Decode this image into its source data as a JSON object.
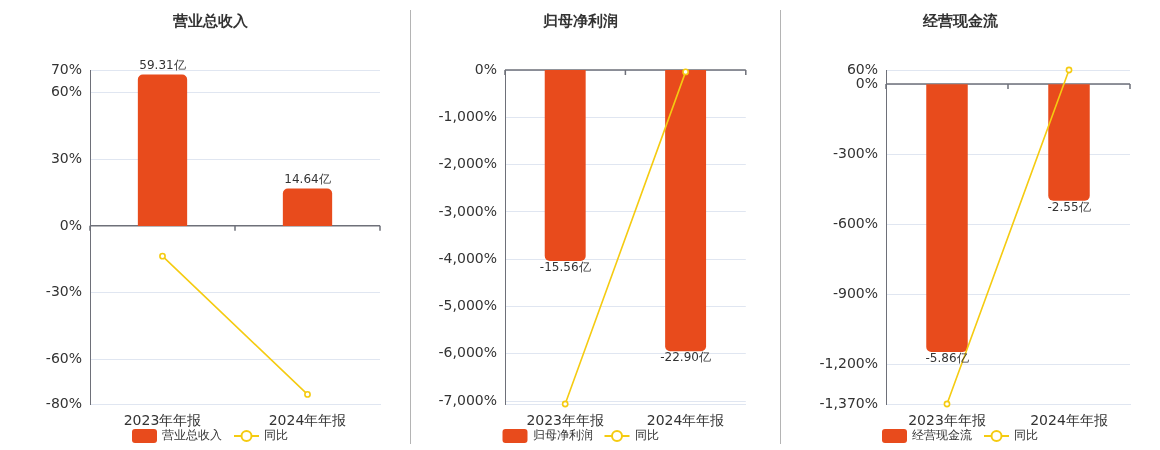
{
  "chart_data": [
    {
      "type": "bar",
      "title": "营业总收入",
      "categories": [
        "2023年年报",
        "2024年年报"
      ],
      "series": [
        {
          "name": "营业总收入",
          "axis": "y2",
          "color": "#e84b1c",
          "values": [
            59.31,
            14.64
          ],
          "value_labels": [
            "59.31亿",
            "14.64亿"
          ]
        },
        {
          "name": "同比",
          "type": "line",
          "color": "#f5cb11",
          "values": [
            -13.6,
            -75.7
          ]
        }
      ],
      "ylim": [
        -80,
        70
      ],
      "yticks": [
        {
          "value": 70,
          "label": "70%"
        },
        {
          "value": 60,
          "label": "60%"
        },
        {
          "value": 30,
          "label": "30%"
        },
        {
          "value": 0,
          "label": "0%"
        },
        {
          "value": -30,
          "label": "-30%"
        },
        {
          "value": -60,
          "label": "-60%"
        },
        {
          "value": -80,
          "label": "-80%"
        }
      ],
      "y2lim": [
        -69.8,
        61.1
      ],
      "grid": "y",
      "legend": "bottom",
      "marker": "circle"
    },
    {
      "type": "bar",
      "title": "归母净利润",
      "categories": [
        "2023年年报",
        "2024年年报"
      ],
      "series": [
        {
          "name": "归母净利润",
          "axis": "y2",
          "color": "#e84b1c",
          "values": [
            -15.56,
            -22.9
          ],
          "value_labels": [
            "-15.56亿",
            "-22.90亿"
          ]
        },
        {
          "name": "同比",
          "type": "line",
          "color": "#f5cb11",
          "values": [
            -7060,
            -40
          ]
        }
      ],
      "ylim": [
        -7060,
        0
      ],
      "yticks": [
        {
          "value": 0,
          "label": "0%"
        },
        {
          "value": -1000,
          "label": "-1,000%"
        },
        {
          "value": -2000,
          "label": "-2,000%"
        },
        {
          "value": -3000,
          "label": "-3,000%"
        },
        {
          "value": -4000,
          "label": "-4,000%"
        },
        {
          "value": -5000,
          "label": "-5,000%"
        },
        {
          "value": -6000,
          "label": "-6,000%"
        },
        {
          "value": -7000,
          "label": "-7,000%"
        }
      ],
      "y2lim": [
        -27.2,
        0
      ],
      "grid": "y",
      "legend": "bottom",
      "marker": "circle"
    },
    {
      "type": "bar",
      "title": "经营现金流",
      "categories": [
        "2023年年报",
        "2024年年报"
      ],
      "series": [
        {
          "name": "经营现金流",
          "axis": "y2",
          "color": "#e84b1c",
          "values": [
            -5.86,
            -2.55
          ],
          "value_labels": [
            "-5.86亿",
            "-2.55亿"
          ]
        },
        {
          "name": "同比",
          "type": "line",
          "color": "#f5cb11",
          "values": [
            -1370,
            60
          ]
        }
      ],
      "ylim": [
        -1370,
        60
      ],
      "yticks": [
        {
          "value": 60,
          "label": "60%"
        },
        {
          "value": 0,
          "label": "0%"
        },
        {
          "value": -300,
          "label": "-300%"
        },
        {
          "value": -600,
          "label": "-600%"
        },
        {
          "value": -900,
          "label": "-900%"
        },
        {
          "value": -1200,
          "label": "-1,200%"
        },
        {
          "value": -1370,
          "label": "-1,370%"
        }
      ],
      "y2lim": [
        -7,
        0.31
      ],
      "grid": "y",
      "legend": "bottom",
      "marker": "circle"
    }
  ]
}
